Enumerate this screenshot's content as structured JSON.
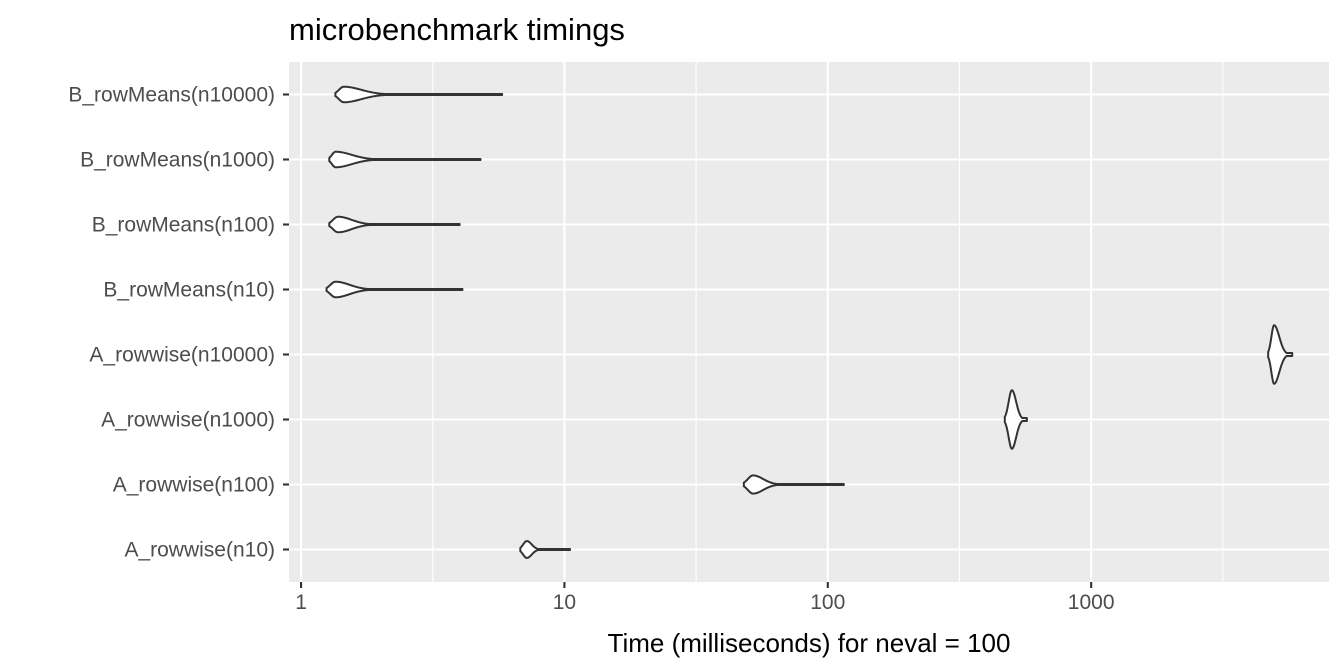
{
  "chart_data": {
    "type": "violin",
    "title": "microbenchmark timings",
    "xlabel": "Time (milliseconds) for neval = 100",
    "ylabel": "",
    "x_scale": "log10",
    "xlim": [
      0.9,
      8000
    ],
    "x_ticks": [
      1,
      10,
      100,
      1000
    ],
    "x_tick_labels": [
      "1",
      "10",
      "100",
      "1000"
    ],
    "grid": true,
    "categories": [
      "A_rowwise(n10)",
      "A_rowwise(n100)",
      "A_rowwise(n1000)",
      "A_rowwise(n10000)",
      "B_rowMeans(n10)",
      "B_rowMeans(n100)",
      "B_rowMeans(n1000)",
      "B_rowMeans(n10000)"
    ],
    "series": [
      {
        "category": "A_rowwise(n10)",
        "min": 6.8,
        "mode": 7.2,
        "max": 10.5,
        "width": 0.13,
        "profile": "skewed"
      },
      {
        "category": "A_rowwise(n100)",
        "min": 48,
        "mode": 52,
        "max": 115,
        "width": 0.14,
        "profile": "skewed"
      },
      {
        "category": "A_rowwise(n1000)",
        "min": 470,
        "mode": 500,
        "max": 570,
        "width": 0.45,
        "profile": "narrow"
      },
      {
        "category": "A_rowwise(n10000)",
        "min": 4700,
        "mode": 4950,
        "max": 5800,
        "width": 0.45,
        "profile": "narrow"
      },
      {
        "category": "B_rowMeans(n10)",
        "min": 1.25,
        "mode": 1.35,
        "max": 4.1,
        "width": 0.12,
        "profile": "skewed"
      },
      {
        "category": "B_rowMeans(n100)",
        "min": 1.28,
        "mode": 1.38,
        "max": 4.0,
        "width": 0.12,
        "profile": "skewed"
      },
      {
        "category": "B_rowMeans(n1000)",
        "min": 1.28,
        "mode": 1.35,
        "max": 4.8,
        "width": 0.12,
        "profile": "skewed"
      },
      {
        "category": "B_rowMeans(n10000)",
        "min": 1.35,
        "mode": 1.45,
        "max": 5.8,
        "width": 0.12,
        "profile": "skewed"
      }
    ]
  }
}
